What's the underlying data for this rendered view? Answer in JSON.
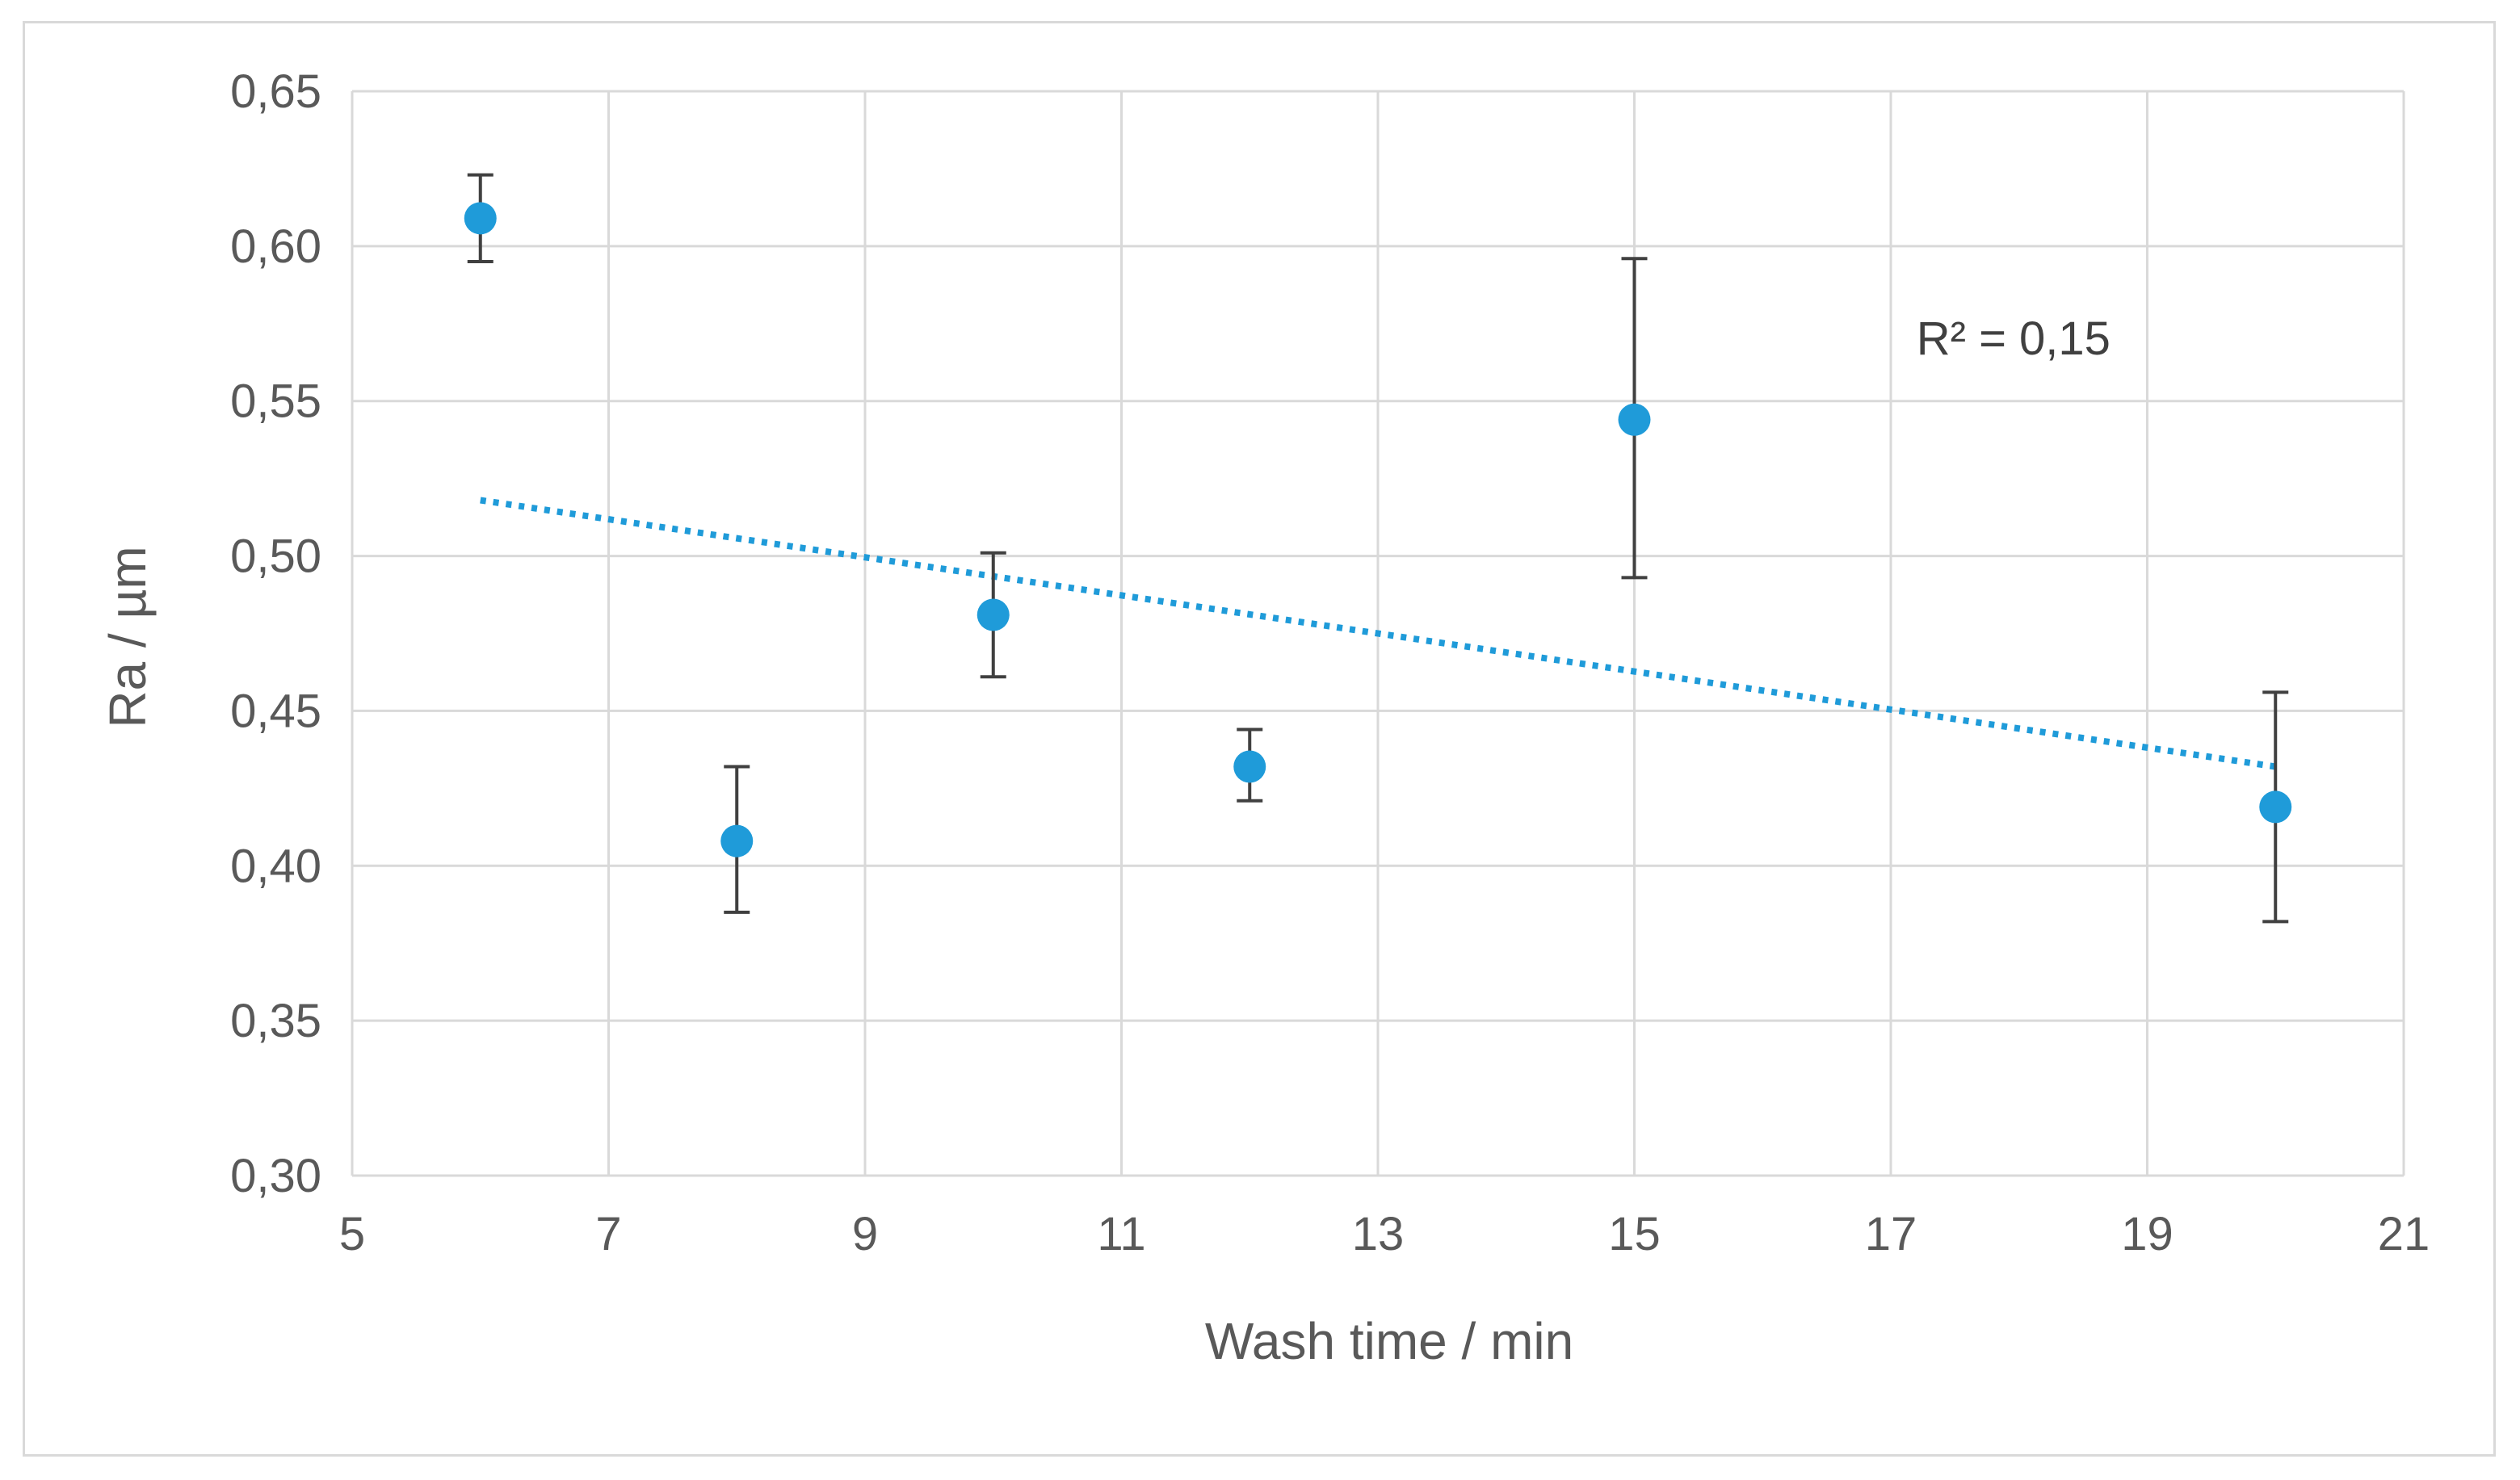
{
  "chart_data": {
    "type": "scatter",
    "title": "",
    "xlabel": "Wash time / min",
    "ylabel": "Ra / µm",
    "xlim": [
      5,
      21
    ],
    "ylim": [
      0.3,
      0.65
    ],
    "x_ticks": [
      5,
      7,
      9,
      11,
      13,
      15,
      17,
      19,
      21
    ],
    "x_tick_labels": [
      "5",
      "7",
      "9",
      "11",
      "13",
      "15",
      "17",
      "19",
      "21"
    ],
    "y_ticks": [
      0.3,
      0.35,
      0.4,
      0.45,
      0.5,
      0.55,
      0.6,
      0.65
    ],
    "y_tick_labels": [
      "0,30",
      "0,35",
      "0,40",
      "0,45",
      "0,50",
      "0,55",
      "0,60",
      "0,65"
    ],
    "grid": true,
    "legend": "none",
    "series": [
      {
        "points": [
          {
            "x": 6,
            "y": 0.609,
            "err_low": 0.595,
            "err_high": 0.623
          },
          {
            "x": 8,
            "y": 0.408,
            "err_low": 0.385,
            "err_high": 0.432
          },
          {
            "x": 10,
            "y": 0.481,
            "err_low": 0.461,
            "err_high": 0.501
          },
          {
            "x": 12,
            "y": 0.432,
            "err_low": 0.421,
            "err_high": 0.444
          },
          {
            "x": 15,
            "y": 0.544,
            "err_low": 0.493,
            "err_high": 0.596
          },
          {
            "x": 20,
            "y": 0.419,
            "err_low": 0.382,
            "err_high": 0.456
          }
        ],
        "color": "#1f9bd9"
      }
    ],
    "trendline": {
      "type": "linear",
      "x": [
        6,
        20
      ],
      "y": [
        0.518,
        0.432
      ],
      "style": "dotted",
      "color": "#1f9bd9"
    },
    "annotations": [
      {
        "text": "R² = 0,15",
        "x": 17.2,
        "y": 0.565
      }
    ],
    "colors": {
      "marker": "#1f9bd9",
      "error_bar": "#404040",
      "grid": "#d9d9d9",
      "text": "#595959"
    }
  }
}
